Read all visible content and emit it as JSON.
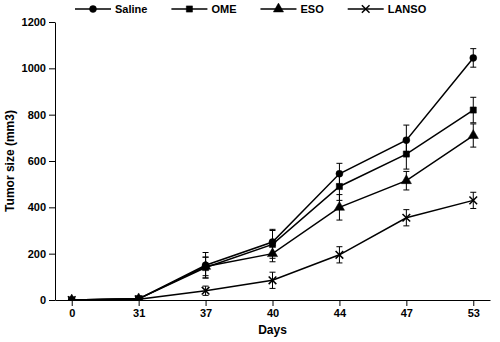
{
  "chart_data": {
    "type": "line",
    "x_label": "Days",
    "y_label": "Tumor size (mm3)",
    "categories": [
      "0",
      "31",
      "37",
      "40",
      "44",
      "47",
      "53"
    ],
    "ylim": [
      0,
      1200
    ],
    "yticks": [
      0,
      200,
      400,
      600,
      800,
      1000,
      1200
    ],
    "legend": "top",
    "grid": false,
    "series": [
      {
        "name": "Saline",
        "color": "#000000",
        "marker": "circle",
        "line_style": "solid",
        "values": [
          0,
          5,
          150,
          250,
          545,
          690,
          1045
        ],
        "errors": [
          0,
          2,
          55,
          55,
          45,
          65,
          40
        ]
      },
      {
        "name": "OME",
        "color": "#000000",
        "marker": "square",
        "line_style": "solid",
        "values": [
          0,
          5,
          140,
          240,
          490,
          630,
          820
        ],
        "errors": [
          0,
          2,
          45,
          60,
          60,
          65,
          55
        ]
      },
      {
        "name": "ESO",
        "color": "#000000",
        "marker": "triangle",
        "line_style": "solid",
        "values": [
          0,
          5,
          145,
          200,
          400,
          515,
          710
        ],
        "errors": [
          0,
          2,
          40,
          35,
          55,
          40,
          50
        ]
      },
      {
        "name": "LANSO",
        "color": "#000000",
        "marker": "x",
        "line_style": "solid",
        "values": [
          0,
          3,
          40,
          85,
          195,
          355,
          430
        ],
        "errors": [
          0,
          1,
          20,
          35,
          35,
          35,
          35
        ]
      }
    ]
  }
}
